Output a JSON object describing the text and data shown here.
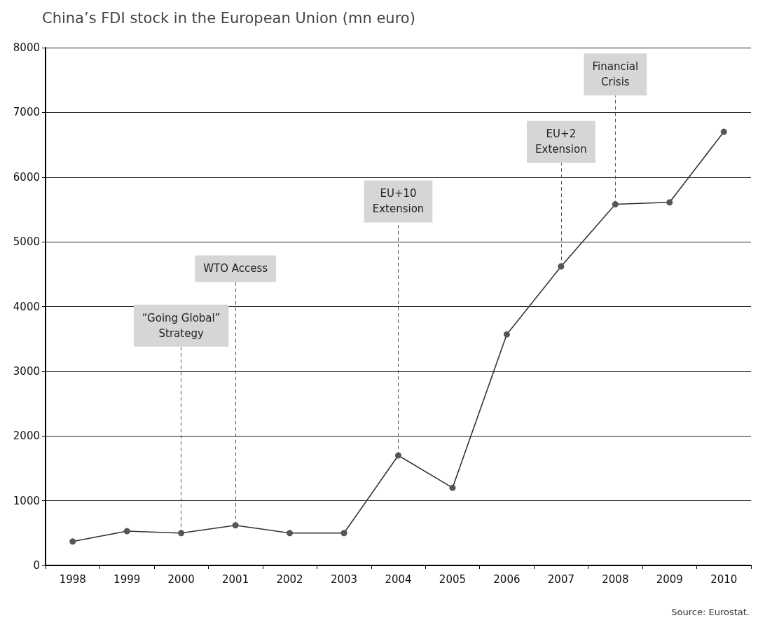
{
  "chart_data": {
    "type": "line",
    "title": "China’s FDI stock in the European Union (mn euro)",
    "categories": [
      "1998",
      "1999",
      "2000",
      "2001",
      "2002",
      "2003",
      "2004",
      "2005",
      "2006",
      "2007",
      "2008",
      "2009",
      "2010"
    ],
    "series": [
      {
        "color": "#333333",
        "values": [
          370,
          530,
          500,
          620,
          500,
          500,
          1700,
          1200,
          3570,
          4620,
          5580,
          5610,
          6700
        ]
      }
    ],
    "ylim": [
      0,
      8000
    ],
    "yticks": [
      0,
      1000,
      2000,
      3000,
      4000,
      5000,
      6000,
      7000,
      8000
    ],
    "grid": "y",
    "marker": "circle",
    "line_style": "solid",
    "annotations": [
      {
        "text": "“Going Global”\nStrategy",
        "x": "2000",
        "y": 500
      },
      {
        "text": "WTO Access",
        "x": "2001",
        "y": 620
      },
      {
        "text": "EU+10\nExtension",
        "x": "2004",
        "y": 1700
      },
      {
        "text": "EU+2\nExtension",
        "x": "2007",
        "y": 4620
      },
      {
        "text": "Financial\nCrisis",
        "x": "2008",
        "y": 5580
      },
      "Source: Eurostat."
    ]
  }
}
